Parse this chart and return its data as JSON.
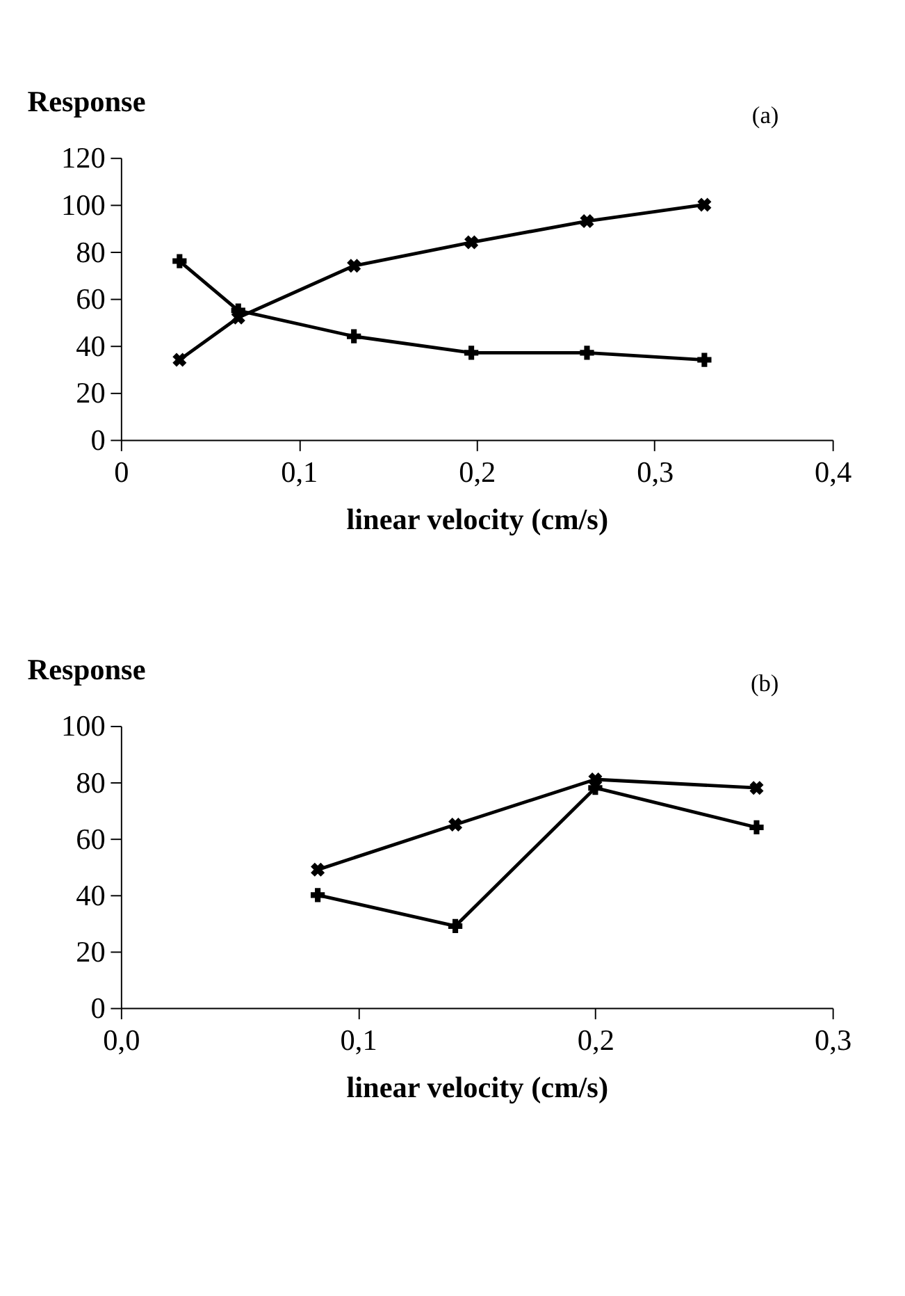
{
  "chart_data": [
    {
      "type": "line",
      "ylabel": "Response",
      "xlabel": "linear velocity (cm/s)",
      "annotations": [
        "(a)"
      ],
      "xlim": [
        0,
        0.4
      ],
      "xticks": [
        0,
        {
          "value": 0.1,
          "label": "0,1"
        },
        {
          "value": 0.2,
          "label": "0,2"
        },
        {
          "value": 0.3,
          "label": "0,3"
        },
        {
          "value": 0.4,
          "label": "0,4"
        }
      ],
      "ylim": [
        0,
        120
      ],
      "yticks": [
        0,
        20,
        40,
        60,
        80,
        100,
        120
      ],
      "grid": false,
      "legend": false,
      "series": [
        {
          "color": "#000000",
          "marker": "x",
          "x": [
            0.033,
            0.066,
            0.131,
            0.197,
            0.262,
            0.328
          ],
          "values": [
            34,
            52,
            74,
            84,
            93,
            100
          ]
        },
        {
          "color": "#000000",
          "marker": "cross",
          "x": [
            0.033,
            0.066,
            0.131,
            0.197,
            0.262,
            0.328
          ],
          "values": [
            76,
            55,
            44,
            37,
            37,
            34
          ]
        }
      ]
    },
    {
      "type": "line",
      "ylabel": "Response",
      "xlabel": "linear velocity (cm/s)",
      "annotations": [
        "(b)"
      ],
      "xlim": [
        0,
        0.3
      ],
      "xticks": [
        {
          "value": 0,
          "label": "0,0"
        },
        {
          "value": 0.1,
          "label": "0,1"
        },
        {
          "value": 0.2,
          "label": "0,2"
        },
        {
          "value": 0.3,
          "label": "0,3"
        }
      ],
      "ylim": [
        0,
        100
      ],
      "yticks": [
        0,
        20,
        40,
        60,
        80,
        100
      ],
      "grid": false,
      "legend": false,
      "series": [
        {
          "color": "#000000",
          "marker": "x",
          "x": [
            0.083,
            0.141,
            0.2,
            0.268
          ],
          "values": [
            49,
            65,
            81,
            78
          ]
        },
        {
          "color": "#000000",
          "marker": "cross",
          "x": [
            0.083,
            0.141,
            0.2,
            0.268
          ],
          "values": [
            40,
            29,
            78,
            64
          ]
        }
      ]
    }
  ]
}
